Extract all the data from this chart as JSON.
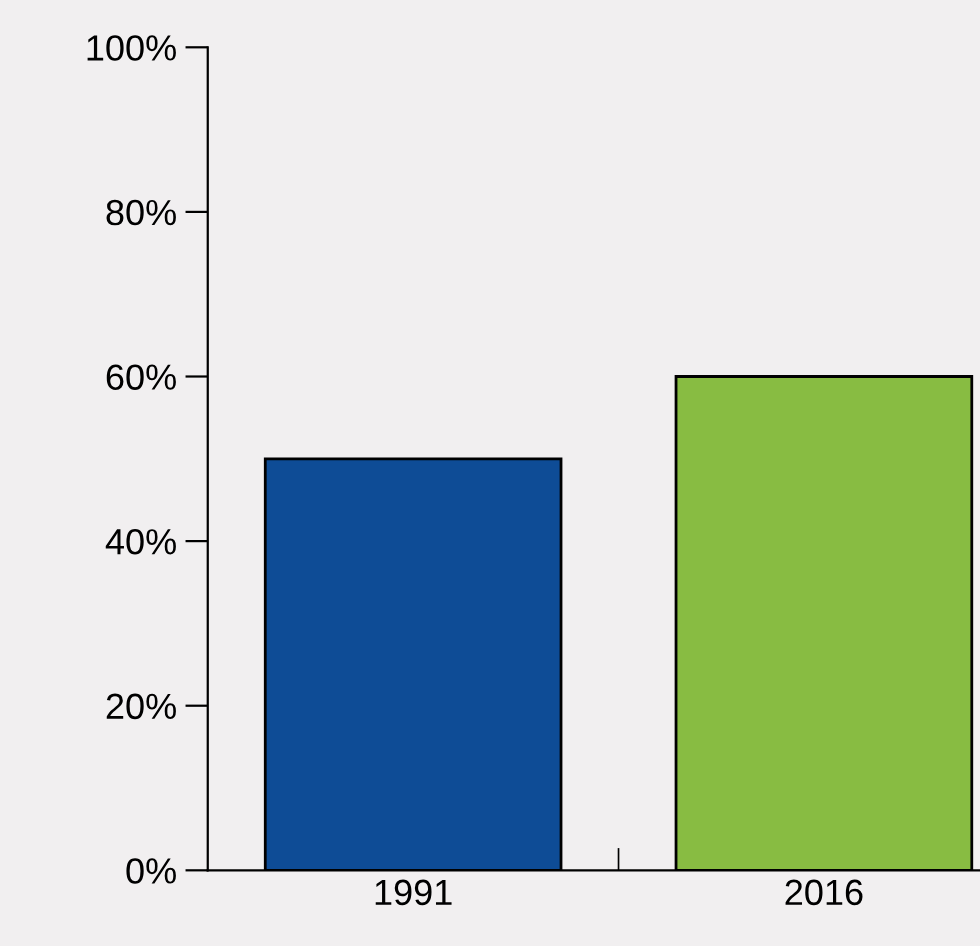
{
  "chart_data": {
    "type": "bar",
    "categories": [
      "1991",
      "2016"
    ],
    "values": [
      50,
      60
    ],
    "colors": [
      "#0e4c96",
      "#88bc42"
    ],
    "ylim": [
      0,
      100
    ],
    "yticks": [
      {
        "value": 0,
        "label": "0%"
      },
      {
        "value": 20,
        "label": "20%"
      },
      {
        "value": 40,
        "label": "40%"
      },
      {
        "value": 60,
        "label": "60%"
      },
      {
        "value": 80,
        "label": "80%"
      },
      {
        "value": 100,
        "label": "100%"
      }
    ],
    "grid": false,
    "legend": false
  }
}
